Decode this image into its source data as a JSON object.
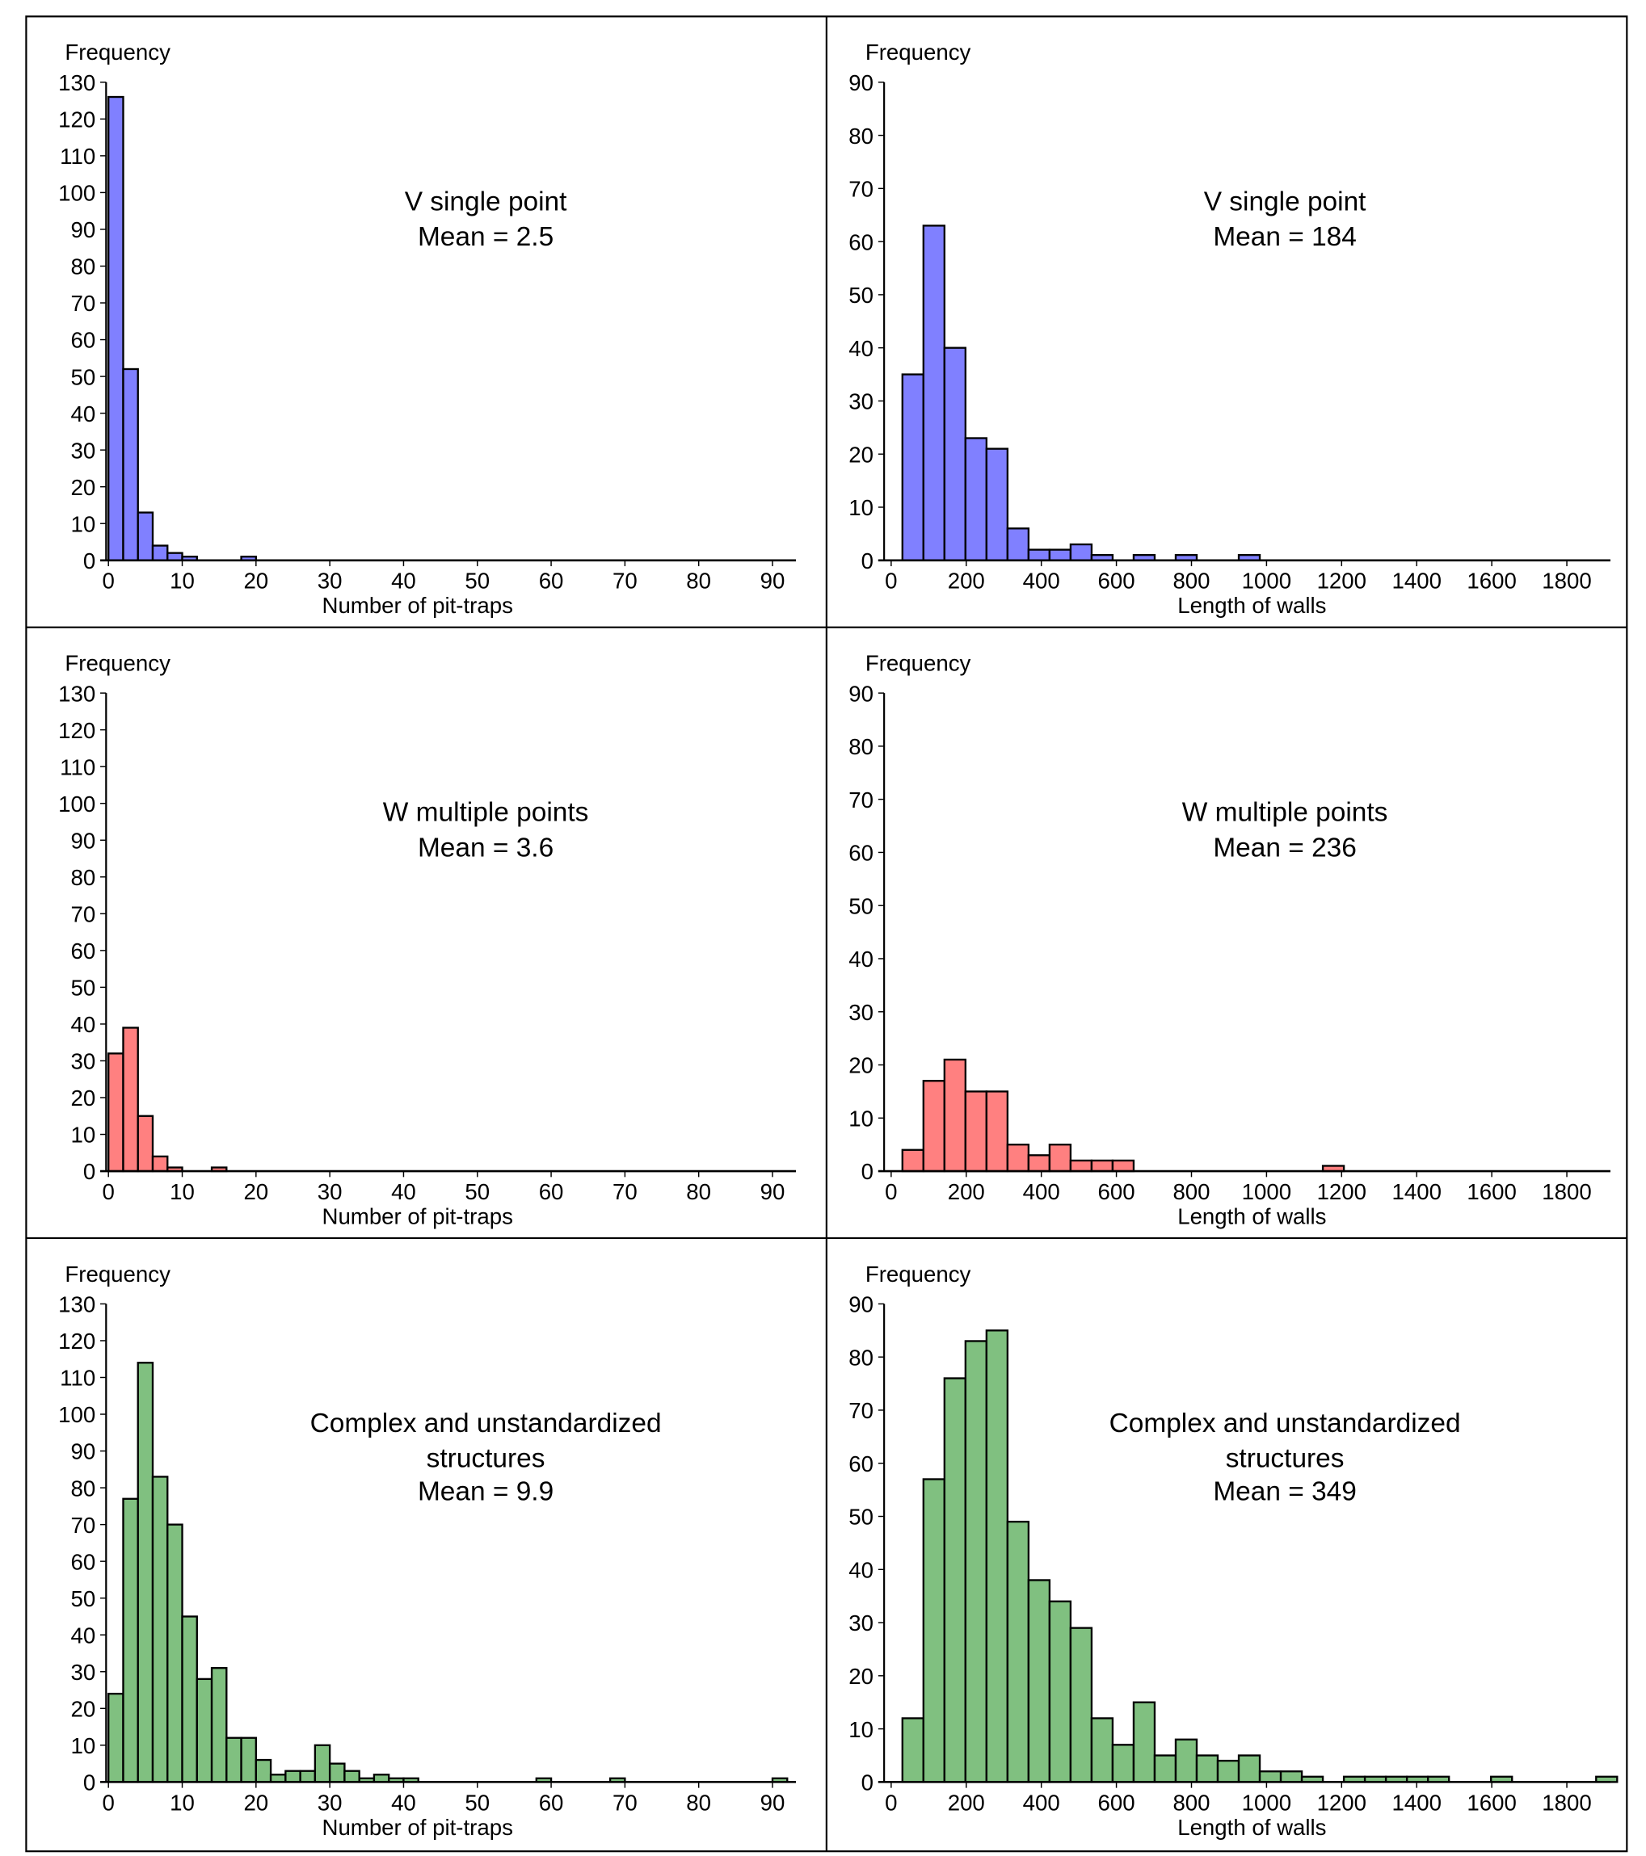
{
  "colors": {
    "blue": "#8080ff",
    "red": "#ff8080",
    "green": "#80c080",
    "bar_edge": "#000000"
  },
  "chart_data": [
    {
      "type": "bar",
      "panel": "top-left",
      "ylabel": "Frequency",
      "xlabel": "Number of pit-traps",
      "annotation": [
        "V single point",
        "Mean = 2.5"
      ],
      "color": "blue",
      "ylim": [
        0,
        130
      ],
      "yticks": [
        0,
        10,
        20,
        30,
        40,
        50,
        60,
        70,
        80,
        90,
        100,
        110,
        120,
        130
      ],
      "xlim": [
        0,
        94
      ],
      "xticks": [
        0,
        10,
        20,
        30,
        40,
        50,
        60,
        70,
        80,
        90
      ],
      "bin_start": 0,
      "bin_width": 2,
      "values": [
        126,
        52,
        13,
        4,
        2,
        1,
        0,
        0,
        0,
        1
      ]
    },
    {
      "type": "bar",
      "panel": "top-right",
      "ylabel": "Frequency",
      "xlabel": "Length of walls",
      "annotation": [
        "V single point",
        "Mean = 184"
      ],
      "color": "blue",
      "ylim": [
        0,
        90
      ],
      "yticks": [
        0,
        10,
        20,
        30,
        40,
        50,
        60,
        70,
        80,
        90
      ],
      "xlim": [
        0,
        1930
      ],
      "xticks": [
        0,
        200,
        400,
        600,
        800,
        1000,
        1200,
        1400,
        1600,
        1800
      ],
      "bin_start": 30,
      "bin_width": 56,
      "values": [
        35,
        63,
        40,
        23,
        21,
        6,
        2,
        2,
        3,
        1,
        0,
        1,
        0,
        1,
        0,
        0,
        1
      ]
    },
    {
      "type": "bar",
      "panel": "middle-left",
      "ylabel": "Frequency",
      "xlabel": "Number of pit-traps",
      "annotation": [
        "W multiple points",
        "Mean = 3.6"
      ],
      "color": "red",
      "ylim": [
        0,
        130
      ],
      "yticks": [
        0,
        10,
        20,
        30,
        40,
        50,
        60,
        70,
        80,
        90,
        100,
        110,
        120,
        130
      ],
      "xlim": [
        0,
        94
      ],
      "xticks": [
        0,
        10,
        20,
        30,
        40,
        50,
        60,
        70,
        80,
        90
      ],
      "bin_start": 0,
      "bin_width": 2,
      "values": [
        32,
        39,
        15,
        4,
        1,
        0,
        0,
        1
      ]
    },
    {
      "type": "bar",
      "panel": "middle-right",
      "ylabel": "Frequency",
      "xlabel": "Length of walls",
      "annotation": [
        "W multiple points",
        "Mean = 236"
      ],
      "color": "red",
      "ylim": [
        0,
        90
      ],
      "yticks": [
        0,
        10,
        20,
        30,
        40,
        50,
        60,
        70,
        80,
        90
      ],
      "xlim": [
        0,
        1930
      ],
      "xticks": [
        0,
        200,
        400,
        600,
        800,
        1000,
        1200,
        1400,
        1600,
        1800
      ],
      "bin_start": 30,
      "bin_width": 56,
      "values": [
        4,
        17,
        21,
        15,
        15,
        5,
        3,
        5,
        2,
        2,
        2,
        0,
        0,
        0,
        0,
        0,
        0,
        0,
        0,
        0,
        1
      ]
    },
    {
      "type": "bar",
      "panel": "bottom-left",
      "ylabel": "Frequency",
      "xlabel": "Number of pit-traps",
      "annotation": [
        "Complex and unstandardized",
        "structures",
        "Mean = 9.9"
      ],
      "color": "green",
      "ylim": [
        0,
        130
      ],
      "yticks": [
        0,
        10,
        20,
        30,
        40,
        50,
        60,
        70,
        80,
        90,
        100,
        110,
        120,
        130
      ],
      "xlim": [
        0,
        94
      ],
      "xticks": [
        0,
        10,
        20,
        30,
        40,
        50,
        60,
        70,
        80,
        90
      ],
      "bin_start": 0,
      "bin_width": 2,
      "values": [
        24,
        77,
        114,
        83,
        70,
        45,
        28,
        31,
        12,
        12,
        6,
        2,
        3,
        3,
        10,
        5,
        3,
        1,
        2,
        1,
        1,
        0,
        0,
        0,
        0,
        0,
        0,
        0,
        0,
        1,
        0,
        0,
        0,
        0,
        1,
        0,
        0,
        0,
        0,
        0,
        0,
        0,
        0,
        0,
        0,
        1
      ]
    },
    {
      "type": "bar",
      "panel": "bottom-right",
      "ylabel": "Frequency",
      "xlabel": "Length of walls",
      "annotation": [
        "Complex and unstandardized",
        "structures",
        "Mean = 349"
      ],
      "color": "green",
      "ylim": [
        0,
        90
      ],
      "yticks": [
        0,
        10,
        20,
        30,
        40,
        50,
        60,
        70,
        80,
        90
      ],
      "xlim": [
        0,
        1930
      ],
      "xticks": [
        0,
        200,
        400,
        600,
        800,
        1000,
        1200,
        1400,
        1600,
        1800
      ],
      "bin_start": 30,
      "bin_width": 56,
      "values": [
        12,
        57,
        76,
        83,
        85,
        49,
        38,
        34,
        29,
        12,
        7,
        15,
        5,
        8,
        5,
        4,
        5,
        2,
        2,
        1,
        0,
        1,
        1,
        1,
        1,
        1,
        0,
        0,
        1,
        0,
        0,
        0,
        0,
        1
      ]
    }
  ]
}
